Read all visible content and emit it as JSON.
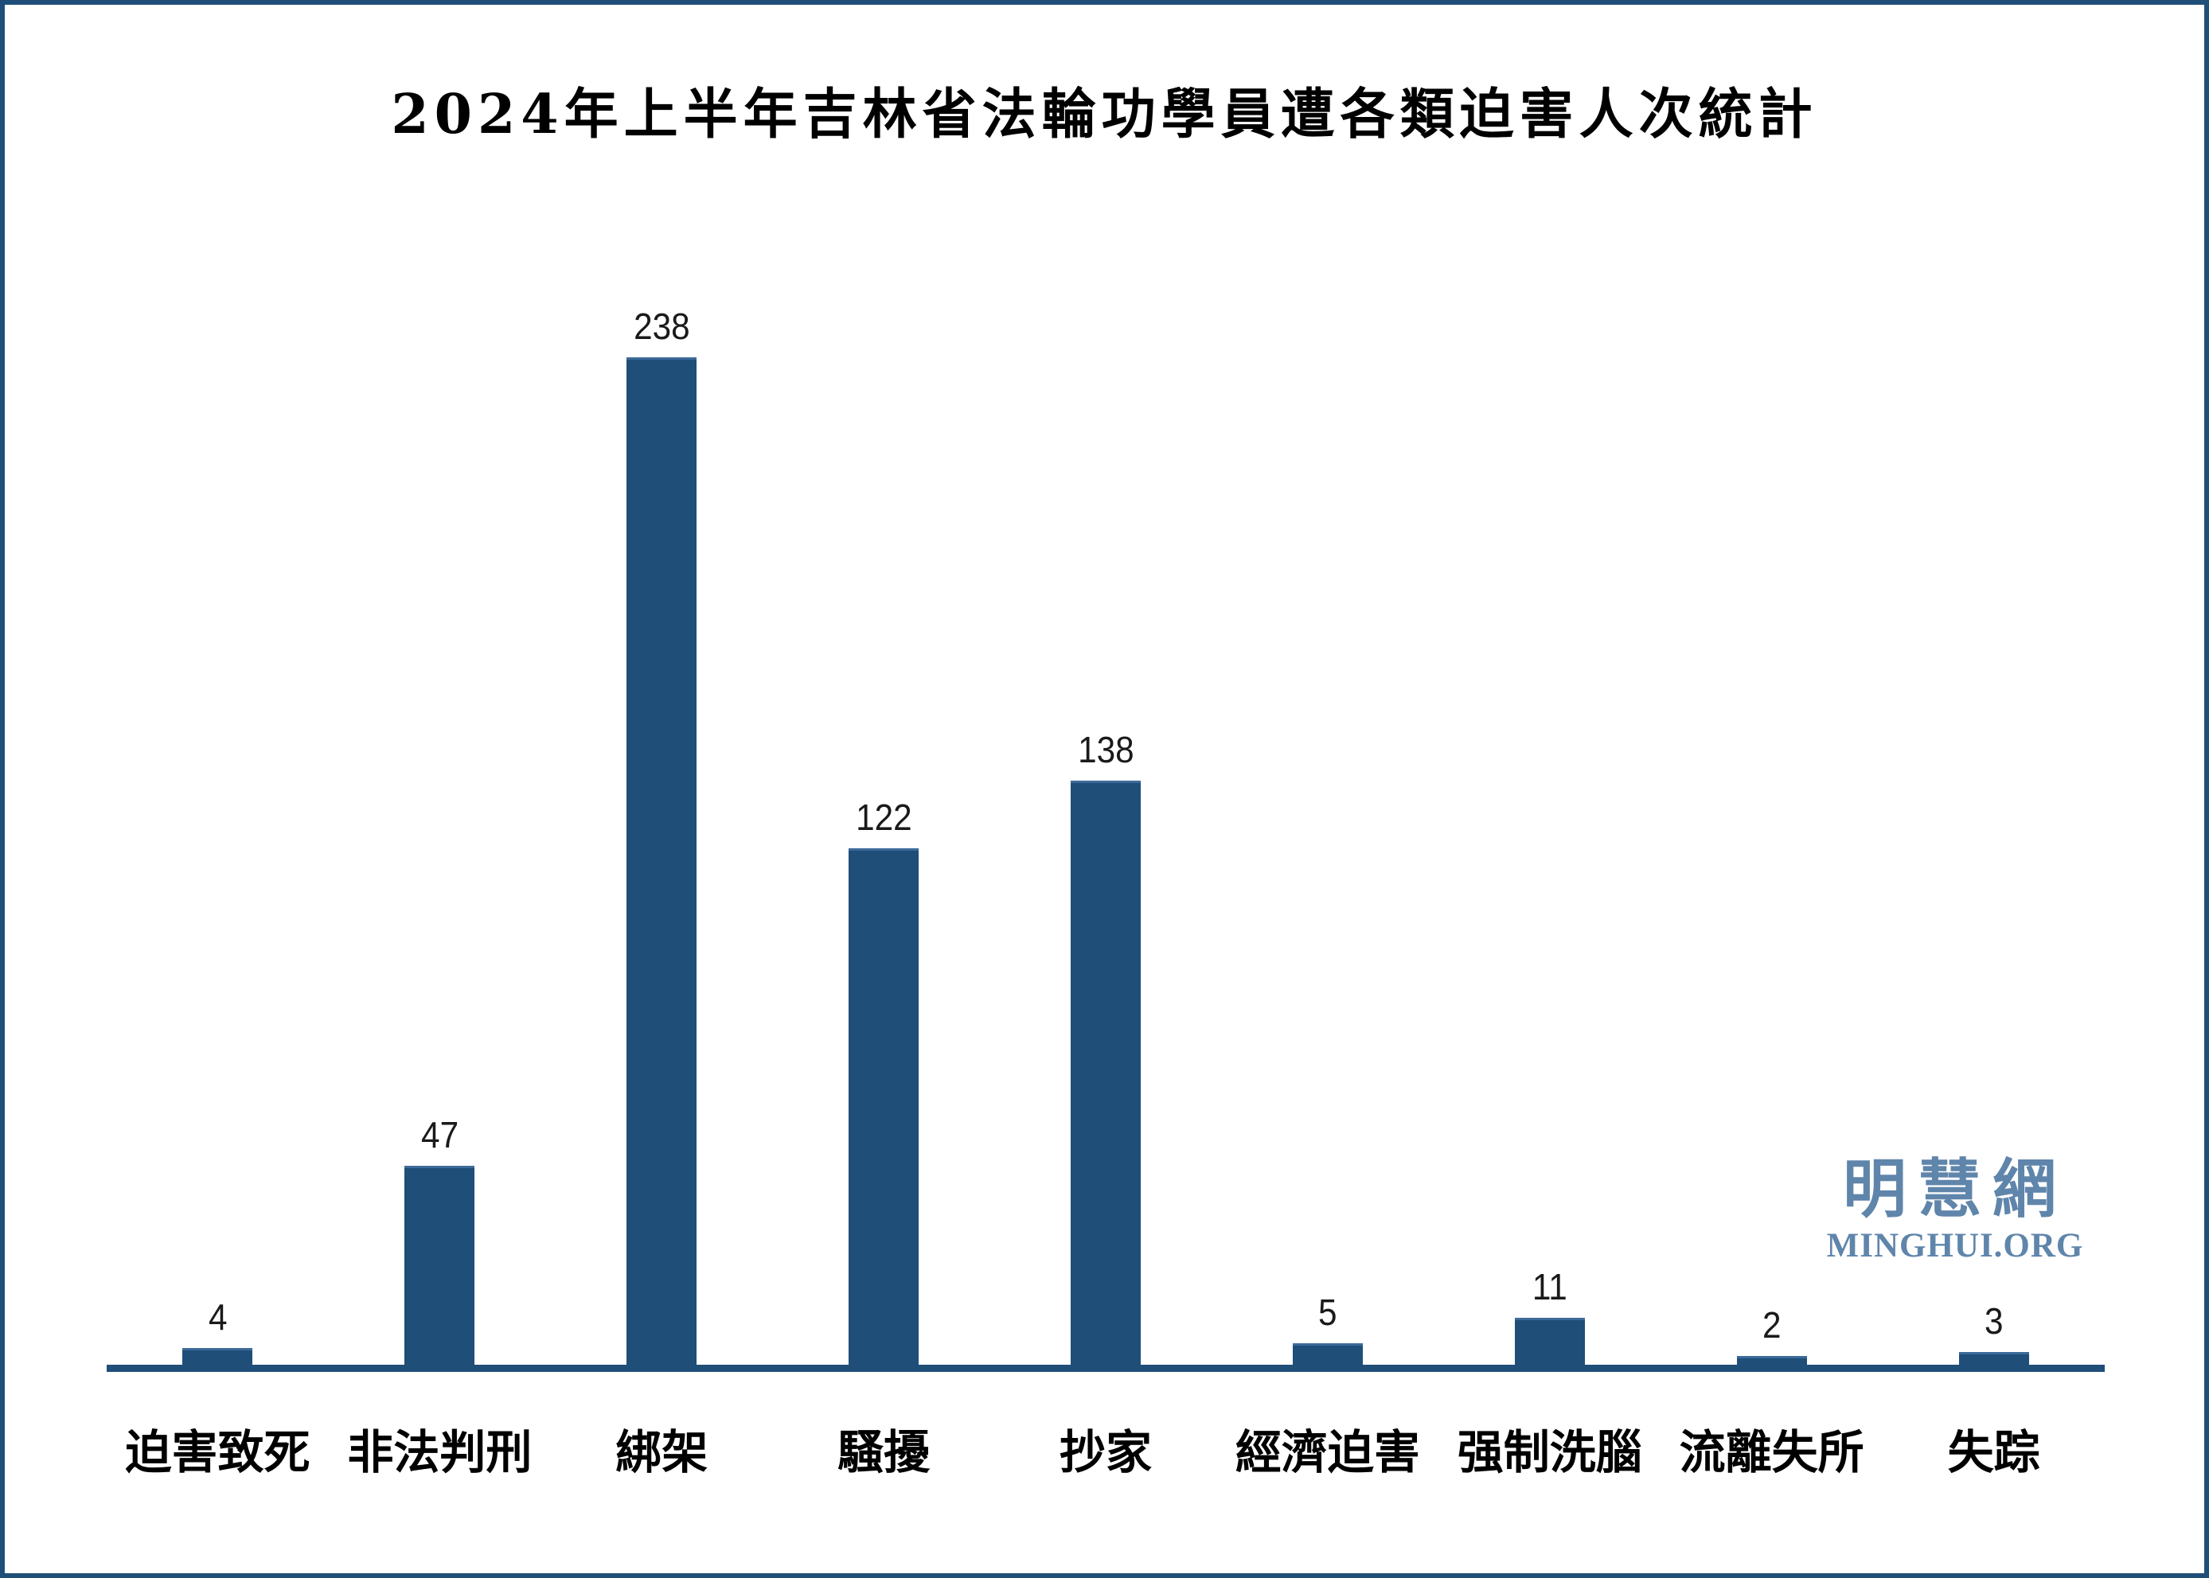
{
  "frame": {
    "border_color": "#1F4E79",
    "background": "#FFFFFF"
  },
  "watermark": {
    "cjk": "明慧網",
    "latin": "MINGHUI.ORG",
    "color": "#5F85AB"
  },
  "chart_data": {
    "type": "bar",
    "title": "2024年上半年吉林省法輪功學員遭各類迫害人次統計",
    "categories": [
      "迫害致死",
      "非法判刑",
      "綁架",
      "騷擾",
      "抄家",
      "經濟迫害",
      "强制洗腦",
      "流離失所",
      "失踪"
    ],
    "values": [
      4,
      47,
      238,
      122,
      138,
      5,
      11,
      2,
      3
    ],
    "xlabel": "",
    "ylabel": "",
    "ylim": [
      0,
      250
    ],
    "grid": false,
    "legend": false,
    "y_axis_shown": false,
    "value_labels_shown": true,
    "bar_color": "#1F4E79",
    "bar_top_edge_color": "#3D6B99",
    "axis_color": "#1F4E79",
    "value_label_color": "#1A1A1A",
    "title_color": "#000000",
    "category_label_color": "#000000"
  }
}
